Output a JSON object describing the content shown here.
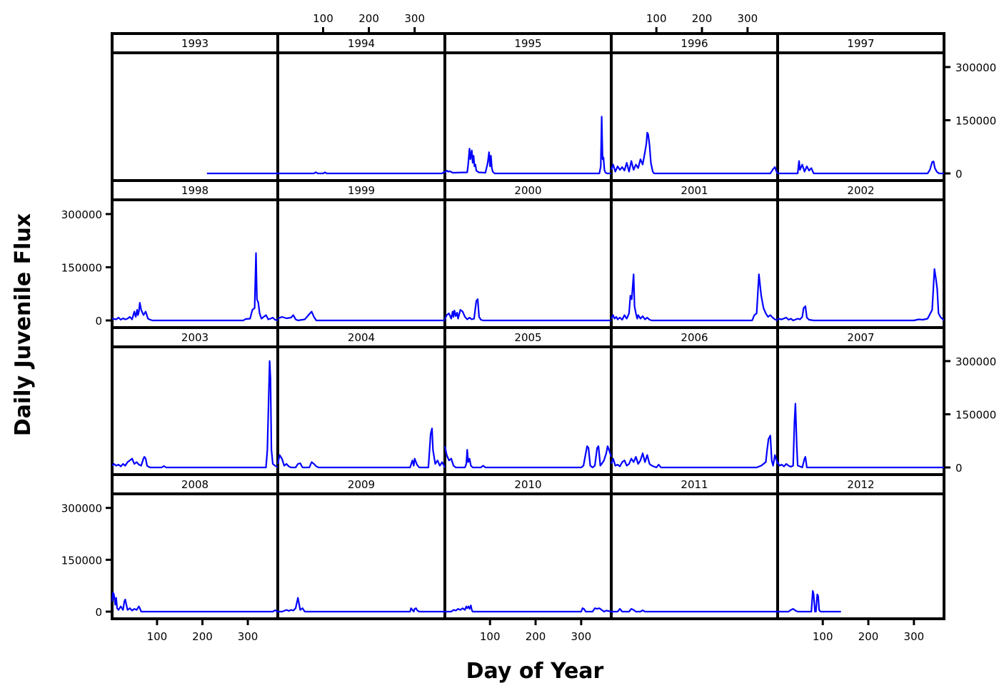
{
  "chart_data": {
    "type": "line",
    "layout": "trellis 5 columns x 4 rows",
    "xlabel": "Day of Year",
    "ylabel": "Daily Juvenile Flux",
    "xlim": [
      1,
      366
    ],
    "ylim": [
      0,
      320000
    ],
    "x_ticks": [
      100,
      200,
      300
    ],
    "y_ticks": [
      0,
      150000,
      300000
    ],
    "x_tick_labels": [
      "100",
      "200",
      "300"
    ],
    "y_tick_labels": [
      "0",
      "150000",
      "300000"
    ],
    "line_color": "#0000ff",
    "panel_border_color": "#000000",
    "panels": [
      {
        "year": "1993",
        "x": [
          210,
          366
        ],
        "y": [
          0,
          0
        ]
      },
      {
        "year": "1994",
        "x": [
          1,
          80,
          84,
          88,
          100,
          104,
          108,
          360,
          364,
          366
        ],
        "y": [
          0,
          0,
          3500,
          0,
          0,
          3000,
          0,
          0,
          4000,
          2000
        ]
      },
      {
        "year": "1995",
        "x": [
          1,
          5,
          8,
          12,
          18,
          50,
          52,
          55,
          57,
          60,
          62,
          64,
          66,
          68,
          70,
          75,
          90,
          95,
          98,
          100,
          102,
          104,
          106,
          110,
          340,
          343,
          345,
          347,
          349,
          351,
          353,
          356,
          366
        ],
        "y": [
          3000,
          8000,
          5000,
          6000,
          2000,
          3000,
          25000,
          70000,
          40000,
          65000,
          30000,
          50000,
          20000,
          25000,
          8000,
          3000,
          2000,
          30000,
          60000,
          20000,
          50000,
          15000,
          5000,
          0,
          0,
          20000,
          160000,
          40000,
          45000,
          10000,
          3000,
          0,
          0
        ]
      },
      {
        "year": "1996",
        "x": [
          1,
          5,
          10,
          15,
          20,
          25,
          30,
          35,
          40,
          45,
          50,
          55,
          60,
          65,
          70,
          75,
          78,
          80,
          82,
          85,
          88,
          92,
          95,
          350,
          356,
          360,
          364,
          366
        ],
        "y": [
          10000,
          25000,
          5000,
          20000,
          10000,
          18000,
          8000,
          30000,
          5000,
          35000,
          10000,
          25000,
          15000,
          40000,
          25000,
          60000,
          85000,
          115000,
          110000,
          80000,
          30000,
          5000,
          0,
          0,
          12000,
          18000,
          4000,
          0
        ]
      },
      {
        "year": "1997",
        "x": [
          1,
          45,
          48,
          50,
          55,
          60,
          65,
          70,
          75,
          80,
          90,
          330,
          335,
          340,
          343,
          346,
          350,
          355,
          366
        ],
        "y": [
          0,
          0,
          35000,
          10000,
          25000,
          5000,
          20000,
          8000,
          15000,
          0,
          0,
          0,
          10000,
          32000,
          34000,
          15000,
          5000,
          0,
          0
        ]
      },
      {
        "year": "1998",
        "x": [
          1,
          10,
          15,
          20,
          25,
          30,
          35,
          40,
          45,
          50,
          53,
          56,
          58,
          60,
          62,
          65,
          70,
          75,
          80,
          85,
          90,
          100,
          105,
          290,
          295,
          305,
          310,
          315,
          318,
          320,
          323,
          326,
          330,
          335,
          340,
          345,
          350,
          355,
          360,
          366
        ],
        "y": [
          5000,
          3000,
          8000,
          2000,
          6000,
          3000,
          5000,
          10000,
          3000,
          25000,
          10000,
          30000,
          15000,
          25000,
          50000,
          30000,
          15000,
          25000,
          5000,
          2000,
          0,
          0,
          0,
          0,
          4000,
          5000,
          30000,
          35000,
          190000,
          60000,
          50000,
          20000,
          5000,
          10000,
          15000,
          3000,
          5000,
          8000,
          2000,
          0
        ]
      },
      {
        "year": "1999",
        "x": [
          1,
          10,
          20,
          30,
          35,
          40,
          45,
          60,
          70,
          75,
          80,
          85,
          110,
          366
        ],
        "y": [
          5000,
          10000,
          6000,
          8000,
          15000,
          3000,
          0,
          3000,
          18000,
          25000,
          10000,
          0,
          0,
          0
        ]
      },
      {
        "year": "2000",
        "x": [
          1,
          5,
          10,
          15,
          18,
          20,
          22,
          25,
          28,
          30,
          35,
          40,
          45,
          50,
          55,
          60,
          65,
          70,
          73,
          76,
          80,
          85,
          90,
          366
        ],
        "y": [
          3000,
          15000,
          20000,
          5000,
          25000,
          10000,
          28000,
          12000,
          22000,
          5000,
          30000,
          25000,
          10000,
          3000,
          8000,
          3000,
          5000,
          55000,
          60000,
          10000,
          2000,
          0,
          0,
          0
        ]
      },
      {
        "year": "2001",
        "x": [
          1,
          5,
          8,
          12,
          15,
          20,
          25,
          30,
          35,
          40,
          43,
          46,
          50,
          52,
          55,
          58,
          60,
          65,
          70,
          75,
          80,
          85,
          90,
          310,
          315,
          320,
          325,
          330,
          335,
          340,
          345,
          350,
          355,
          360,
          366
        ],
        "y": [
          5000,
          15000,
          5000,
          10000,
          3000,
          8000,
          2000,
          15000,
          5000,
          20000,
          70000,
          60000,
          130000,
          40000,
          20000,
          5000,
          15000,
          5000,
          12000,
          3000,
          8000,
          2000,
          0,
          0,
          15000,
          20000,
          130000,
          70000,
          35000,
          20000,
          10000,
          15000,
          8000,
          3000,
          0
        ]
      },
      {
        "year": "2002",
        "x": [
          1,
          10,
          20,
          25,
          30,
          35,
          45,
          50,
          55,
          58,
          62,
          65,
          70,
          80,
          300,
          310,
          320,
          330,
          340,
          345,
          348,
          351,
          354,
          358,
          362,
          366
        ],
        "y": [
          5000,
          3000,
          8000,
          2000,
          5000,
          0,
          5000,
          3000,
          10000,
          35000,
          40000,
          8000,
          2000,
          0,
          0,
          3000,
          2000,
          5000,
          30000,
          145000,
          120000,
          90000,
          20000,
          10000,
          5000,
          0
        ]
      },
      {
        "year": "2003",
        "x": [
          1,
          5,
          10,
          15,
          20,
          25,
          30,
          35,
          40,
          45,
          50,
          55,
          60,
          65,
          70,
          72,
          75,
          78,
          80,
          85,
          90,
          110,
          115,
          120,
          340,
          343,
          346,
          348,
          350,
          352,
          355,
          360,
          366
        ],
        "y": [
          5000,
          10000,
          5000,
          8000,
          3000,
          10000,
          5000,
          15000,
          20000,
          25000,
          10000,
          15000,
          8000,
          5000,
          25000,
          30000,
          25000,
          5000,
          3000,
          0,
          0,
          0,
          4000,
          0,
          0,
          50000,
          200000,
          300000,
          250000,
          50000,
          10000,
          5000,
          0
        ]
      },
      {
        "year": "2004",
        "x": [
          1,
          5,
          10,
          15,
          20,
          25,
          30,
          40,
          45,
          50,
          55,
          70,
          75,
          80,
          85,
          90,
          290,
          295,
          298,
          300,
          305,
          310,
          320,
          330,
          335,
          338,
          340,
          345,
          350,
          355,
          360,
          366
        ],
        "y": [
          10000,
          35000,
          25000,
          5000,
          10000,
          3000,
          0,
          0,
          10000,
          12000,
          0,
          0,
          15000,
          10000,
          3000,
          0,
          0,
          20000,
          5000,
          25000,
          8000,
          0,
          0,
          0,
          95000,
          110000,
          50000,
          10000,
          20000,
          5000,
          15000,
          0
        ]
      },
      {
        "year": "2005",
        "x": [
          1,
          5,
          10,
          15,
          20,
          25,
          45,
          48,
          50,
          52,
          55,
          58,
          62,
          80,
          85,
          90,
          300,
          305,
          310,
          313,
          316,
          320,
          325,
          330,
          335,
          338,
          342,
          345,
          350,
          355,
          358,
          361,
          366
        ],
        "y": [
          60000,
          35000,
          20000,
          25000,
          5000,
          0,
          0,
          10000,
          50000,
          15000,
          25000,
          5000,
          0,
          0,
          5000,
          0,
          0,
          5000,
          40000,
          60000,
          55000,
          5000,
          0,
          5000,
          55000,
          60000,
          5000,
          10000,
          20000,
          40000,
          60000,
          50000,
          30000
        ]
      },
      {
        "year": "2006",
        "x": [
          1,
          5,
          10,
          15,
          20,
          25,
          30,
          35,
          40,
          45,
          50,
          55,
          60,
          65,
          70,
          75,
          80,
          85,
          90,
          100,
          105,
          110,
          320,
          330,
          335,
          340,
          343,
          346,
          350,
          353,
          356,
          360,
          366
        ],
        "y": [
          10000,
          25000,
          5000,
          8000,
          3000,
          15000,
          20000,
          5000,
          10000,
          25000,
          15000,
          30000,
          10000,
          20000,
          40000,
          15000,
          35000,
          10000,
          5000,
          0,
          8000,
          0,
          0,
          5000,
          10000,
          15000,
          50000,
          80000,
          90000,
          20000,
          5000,
          35000,
          10000
        ]
      },
      {
        "year": "2007",
        "x": [
          1,
          5,
          10,
          15,
          20,
          25,
          30,
          35,
          38,
          40,
          43,
          45,
          50,
          55,
          60,
          62,
          65,
          70,
          366
        ],
        "y": [
          15000,
          5000,
          8000,
          3000,
          10000,
          5000,
          2000,
          5000,
          130000,
          180000,
          60000,
          5000,
          3000,
          0,
          25000,
          30000,
          0,
          0,
          0
        ]
      },
      {
        "year": "2008",
        "x": [
          1,
          3,
          5,
          8,
          10,
          12,
          15,
          20,
          25,
          28,
          30,
          35,
          40,
          45,
          50,
          55,
          60,
          62,
          65,
          70,
          355,
          360,
          366
        ],
        "y": [
          30000,
          55000,
          50000,
          20000,
          40000,
          10000,
          5000,
          15000,
          5000,
          30000,
          35000,
          5000,
          10000,
          3000,
          8000,
          5000,
          15000,
          10000,
          0,
          0,
          0,
          4000,
          0
        ]
      },
      {
        "year": "2009",
        "x": [
          1,
          10,
          20,
          25,
          30,
          35,
          40,
          45,
          50,
          55,
          60,
          290,
          292,
          295,
          298,
          300,
          303,
          306,
          310,
          366
        ],
        "y": [
          0,
          0,
          5000,
          2000,
          5000,
          3000,
          10000,
          40000,
          5000,
          10000,
          0,
          0,
          10000,
          5000,
          0,
          8000,
          10000,
          3000,
          0,
          0
        ]
      },
      {
        "year": "2010",
        "x": [
          1,
          15,
          20,
          25,
          30,
          35,
          40,
          45,
          48,
          50,
          53,
          55,
          58,
          60,
          62,
          300,
          303,
          306,
          310,
          325,
          330,
          335,
          340,
          345,
          350,
          355,
          366
        ],
        "y": [
          0,
          0,
          5000,
          3000,
          8000,
          5000,
          10000,
          5000,
          15000,
          10000,
          15000,
          8000,
          18000,
          5000,
          0,
          0,
          10000,
          8000,
          0,
          0,
          10000,
          8000,
          10000,
          5000,
          0,
          3000,
          0
        ]
      },
      {
        "year": "2011",
        "x": [
          1,
          15,
          20,
          25,
          40,
          45,
          50,
          55,
          65,
          70,
          75,
          366
        ],
        "y": [
          0,
          0,
          8000,
          0,
          0,
          8000,
          5000,
          0,
          0,
          4000,
          0,
          0
        ]
      },
      {
        "year": "2012",
        "x": [
          1,
          25,
          30,
          35,
          40,
          45,
          75,
          78,
          80,
          83,
          85,
          88,
          90,
          92,
          95,
          140
        ],
        "y": [
          0,
          0,
          5000,
          8000,
          3000,
          0,
          0,
          60000,
          50000,
          0,
          0,
          50000,
          45000,
          5000,
          0,
          0
        ]
      }
    ]
  }
}
